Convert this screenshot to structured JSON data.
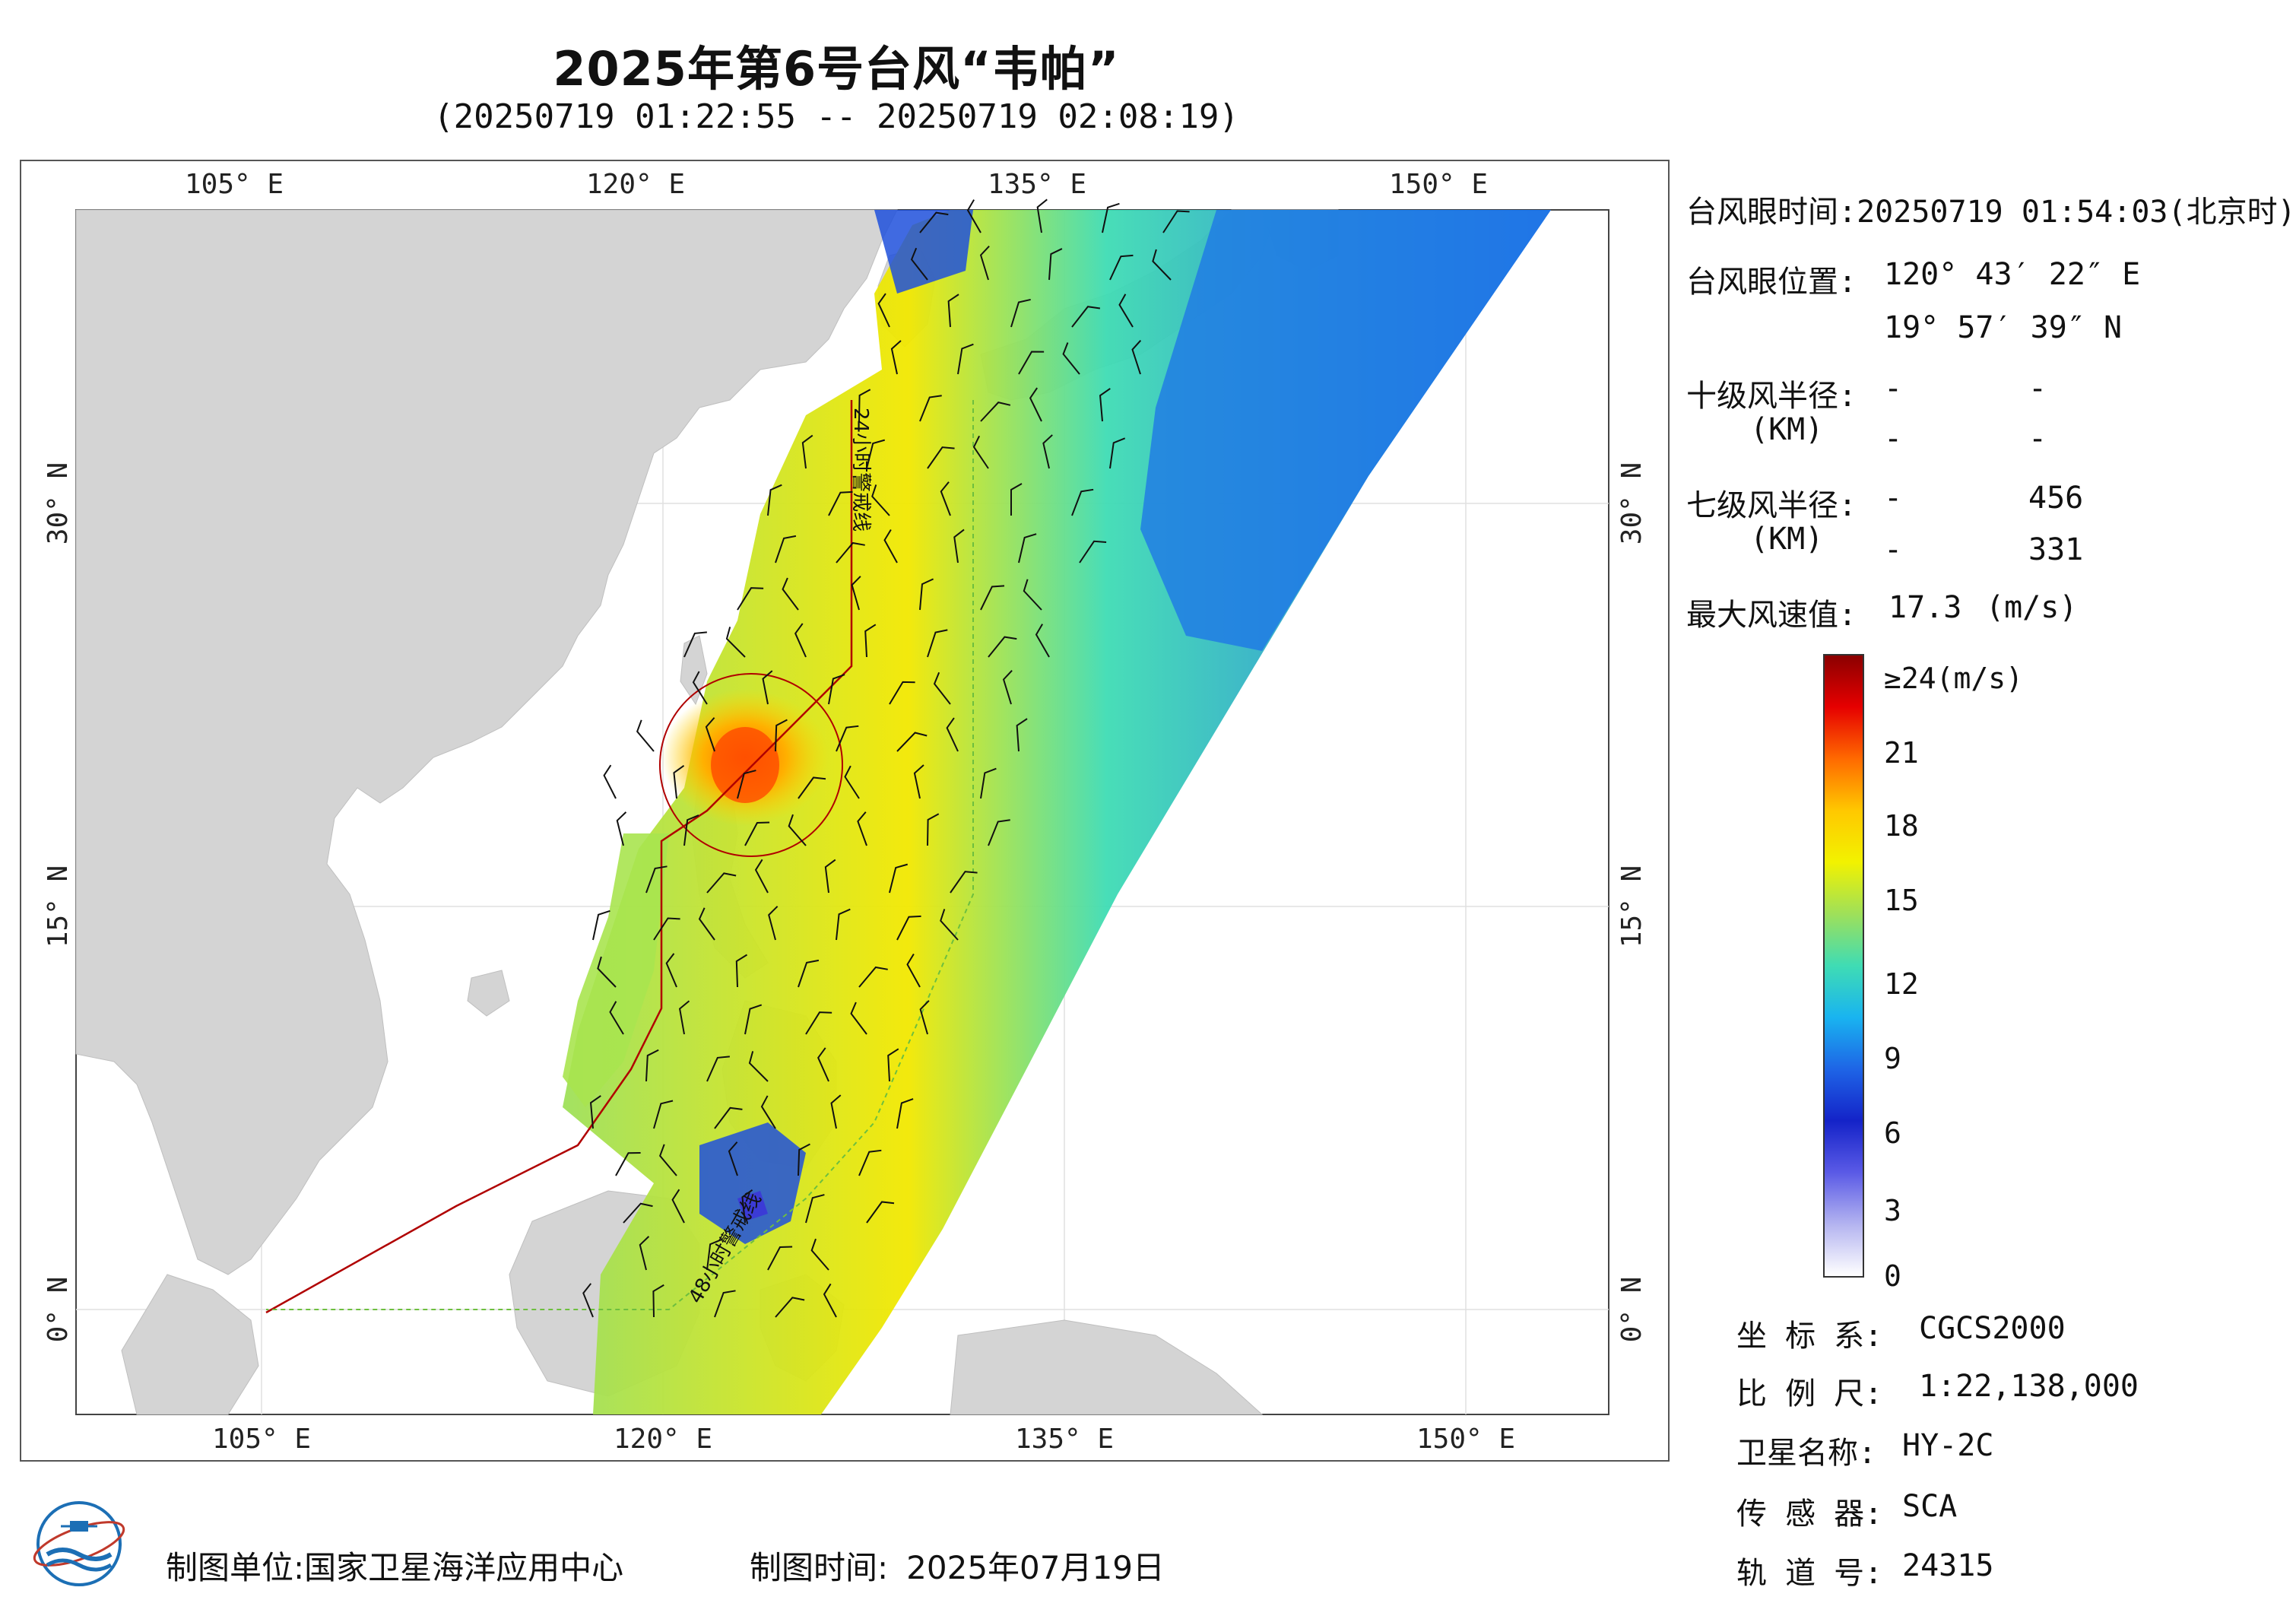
{
  "title": "2025年第6号台风“韦帕”",
  "subtitle": "(20250719 01:22:55 -- 20250719 02:08:19)",
  "map": {
    "lon_ticks_top": [
      "105° E",
      "120° E",
      "135° E",
      "150° E"
    ],
    "lon_ticks_bottom": [
      "105° E",
      "120° E",
      "135° E",
      "150° E"
    ],
    "lat_ticks_left": [
      "30° N",
      "15° N",
      "0° N"
    ],
    "lat_ticks_right": [
      "30° N",
      "15° N",
      "0° N"
    ],
    "warning_24h_label": "24小时警戒线",
    "warning_48h_label": "48小时警戒线"
  },
  "info": {
    "eye_time_label": "台风眼时间:",
    "eye_time_value": "20250719 01:54:03(北京时)",
    "eye_pos_label": "台风眼位置:",
    "eye_lon": "120° 43′ 22″ E",
    "eye_lat": "19° 57′ 39″ N",
    "r10_label": "十级风半径:",
    "r10_unit": "(KM)",
    "r10_row1": [
      "-",
      "-"
    ],
    "r10_row2": [
      "-",
      "-"
    ],
    "r7_label": "七级风半径:",
    "r7_unit": "(KM)",
    "r7_row1": [
      "-",
      "456"
    ],
    "r7_row2": [
      "-",
      "331"
    ],
    "max_wind_label": "最大风速值:",
    "max_wind_value": "17.3",
    "max_wind_unit": "(m/s)"
  },
  "colorbar": {
    "labels": [
      "≥24(m/s)",
      "21",
      "18",
      "15",
      "12",
      "9",
      "6",
      "3",
      "0"
    ],
    "colors": [
      "#8b0000",
      "#e60000",
      "#ff6a00",
      "#ffc800",
      "#f2f200",
      "#9ee05a",
      "#3fdcb4",
      "#19b4f0",
      "#1e64e6",
      "#1423c8",
      "#5a5ae6",
      "#b4b4f0",
      "#ffffff"
    ]
  },
  "meta": {
    "crs_label": "坐 标 系:",
    "crs_value": "CGCS2000",
    "scale_label": "比 例 尺:",
    "scale_value": "1:22,138,000",
    "satellite_label": "卫星名称:",
    "satellite_value": "HY-2C",
    "sensor_label": "传 感 器:",
    "sensor_value": "SCA",
    "orbit_label": "轨 道 号:",
    "orbit_value": "24315"
  },
  "footer": {
    "unit_label": "制图单位:",
    "unit_value": "国家卫星海洋应用中心",
    "time_label": "制图时间:",
    "time_value": "2025年07月19日"
  },
  "colors": {
    "land": "#d4d4d4",
    "ocean": "#ffffff",
    "warning_line": "#b00000",
    "border_line": "#6dbf3f"
  }
}
